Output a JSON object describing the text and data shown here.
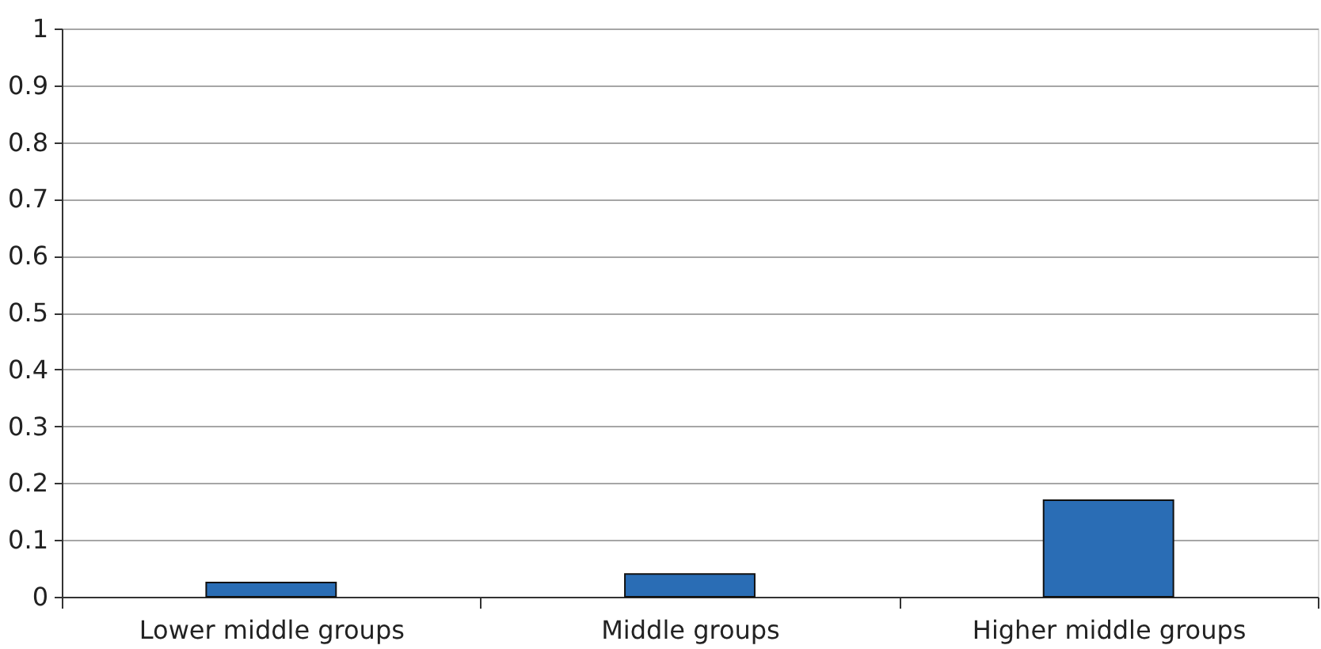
{
  "chart_data": {
    "type": "bar",
    "categories": [
      "Lower middle groups",
      "Middle groups",
      "Higher middle groups"
    ],
    "values": [
      0.025,
      0.04,
      0.17
    ],
    "color": "#2a6db5",
    "ylim": [
      0,
      1
    ],
    "yticks": [
      0,
      0.1,
      0.2,
      0.3,
      0.4,
      0.5,
      0.6,
      0.7,
      0.8,
      0.9,
      1
    ],
    "grid": "y"
  }
}
